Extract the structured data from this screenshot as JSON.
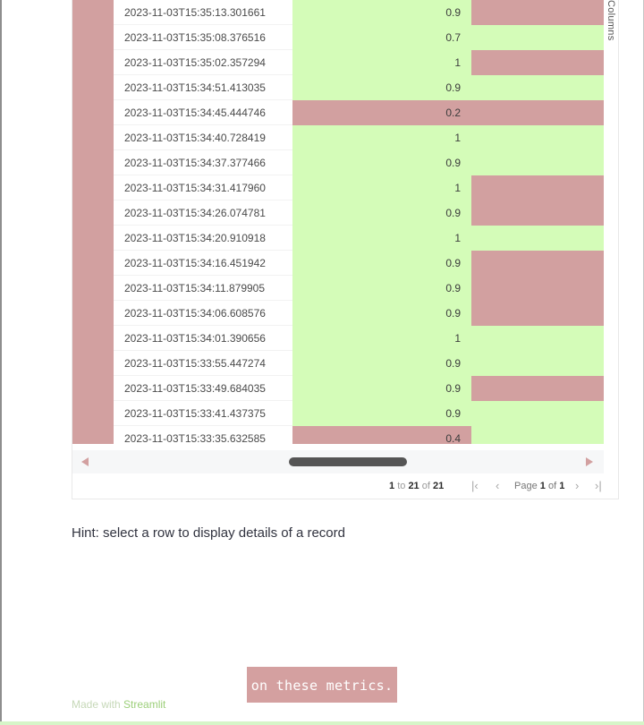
{
  "grid": {
    "side_panel_label": "Columns",
    "rows": [
      {
        "timestamp": "2023-11-03T15:35:13.301661",
        "value": "0.9",
        "value_color": "green",
        "extra_color": "red"
      },
      {
        "timestamp": "2023-11-03T15:35:08.376516",
        "value": "0.7",
        "value_color": "green",
        "extra_color": "green"
      },
      {
        "timestamp": "2023-11-03T15:35:02.357294",
        "value": "1",
        "value_color": "green",
        "extra_color": "red"
      },
      {
        "timestamp": "2023-11-03T15:34:51.413035",
        "value": "0.9",
        "value_color": "green",
        "extra_color": "green"
      },
      {
        "timestamp": "2023-11-03T15:34:45.444746",
        "value": "0.2",
        "value_color": "red",
        "extra_color": "red"
      },
      {
        "timestamp": "2023-11-03T15:34:40.728419",
        "value": "1",
        "value_color": "green",
        "extra_color": "green"
      },
      {
        "timestamp": "2023-11-03T15:34:37.377466",
        "value": "0.9",
        "value_color": "green",
        "extra_color": "green"
      },
      {
        "timestamp": "2023-11-03T15:34:31.417960",
        "value": "1",
        "value_color": "green",
        "extra_color": "red"
      },
      {
        "timestamp": "2023-11-03T15:34:26.074781",
        "value": "0.9",
        "value_color": "green",
        "extra_color": "red"
      },
      {
        "timestamp": "2023-11-03T15:34:20.910918",
        "value": "1",
        "value_color": "green",
        "extra_color": "green"
      },
      {
        "timestamp": "2023-11-03T15:34:16.451942",
        "value": "0.9",
        "value_color": "green",
        "extra_color": "red"
      },
      {
        "timestamp": "2023-11-03T15:34:11.879905",
        "value": "0.9",
        "value_color": "green",
        "extra_color": "red"
      },
      {
        "timestamp": "2023-11-03T15:34:06.608576",
        "value": "0.9",
        "value_color": "green",
        "extra_color": "red"
      },
      {
        "timestamp": "2023-11-03T15:34:01.390656",
        "value": "1",
        "value_color": "green",
        "extra_color": "green"
      },
      {
        "timestamp": "2023-11-03T15:33:55.447274",
        "value": "0.9",
        "value_color": "green",
        "extra_color": "green"
      },
      {
        "timestamp": "2023-11-03T15:33:49.684035",
        "value": "0.9",
        "value_color": "green",
        "extra_color": "red"
      },
      {
        "timestamp": "2023-11-03T15:33:41.437375",
        "value": "0.9",
        "value_color": "green",
        "extra_color": "green"
      },
      {
        "timestamp": "2023-11-03T15:33:35.632585",
        "value": "0.4",
        "value_color": "red",
        "extra_color": "green"
      }
    ]
  },
  "pagination": {
    "range_start": "1",
    "to_word": "to",
    "range_end": "21",
    "of_word": "of",
    "total": "21",
    "page_word": "Page",
    "page_current": "1",
    "page_of_word": "of",
    "page_total": "1"
  },
  "hint": "Hint: select a row to display details of a record",
  "footer": {
    "prefix": "Made with",
    "link": "Streamlit"
  },
  "caption": "on these metrics.",
  "colors": {
    "cell_red": "#d2a0a0",
    "cell_green": "#d4fcb8"
  }
}
